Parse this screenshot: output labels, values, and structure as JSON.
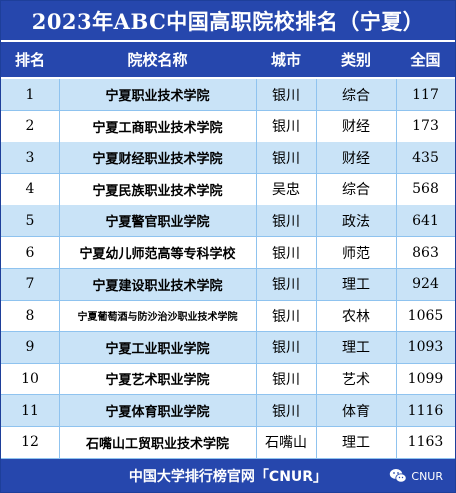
{
  "title": "2023年ABC中国高职院校排名（宁夏）",
  "header": {
    "rank": "排名",
    "name": "院校名称",
    "city": "城市",
    "type": "类别",
    "score": "全国"
  },
  "rows": [
    {
      "rank": "1",
      "name": "宁夏职业技术学院",
      "city": "银川",
      "type": "综合",
      "score": "117"
    },
    {
      "rank": "2",
      "name": "宁夏工商职业技术学院",
      "city": "银川",
      "type": "财经",
      "score": "173"
    },
    {
      "rank": "3",
      "name": "宁夏财经职业技术学院",
      "city": "银川",
      "type": "财经",
      "score": "435"
    },
    {
      "rank": "4",
      "name": "宁夏民族职业技术学院",
      "city": "吴忠",
      "type": "综合",
      "score": "568"
    },
    {
      "rank": "5",
      "name": "宁夏警官职业学院",
      "city": "银川",
      "type": "政法",
      "score": "641"
    },
    {
      "rank": "6",
      "name": "宁夏幼儿师范高等专科学校",
      "city": "银川",
      "type": "师范",
      "score": "863"
    },
    {
      "rank": "7",
      "name": "宁夏建设职业技术学院",
      "city": "银川",
      "type": "理工",
      "score": "924"
    },
    {
      "rank": "8",
      "name": "宁夏葡萄酒与防沙治沙职业技术学院",
      "city": "银川",
      "type": "农林",
      "score": "1065"
    },
    {
      "rank": "9",
      "name": "宁夏工业职业学院",
      "city": "银川",
      "type": "理工",
      "score": "1093"
    },
    {
      "rank": "10",
      "name": "宁夏艺术职业学院",
      "city": "银川",
      "type": "艺术",
      "score": "1099"
    },
    {
      "rank": "11",
      "name": "宁夏体育职业学院",
      "city": "银川",
      "type": "体育",
      "score": "1116"
    },
    {
      "rank": "12",
      "name": "石嘴山工贸职业技术学院",
      "city": "石嘴山",
      "type": "理工",
      "score": "1163"
    }
  ],
  "footer": {
    "text": "中国大学排行榜官网「CNUR」",
    "watermark": "CNUR",
    "watermark_icon": "wechat-icon"
  }
}
